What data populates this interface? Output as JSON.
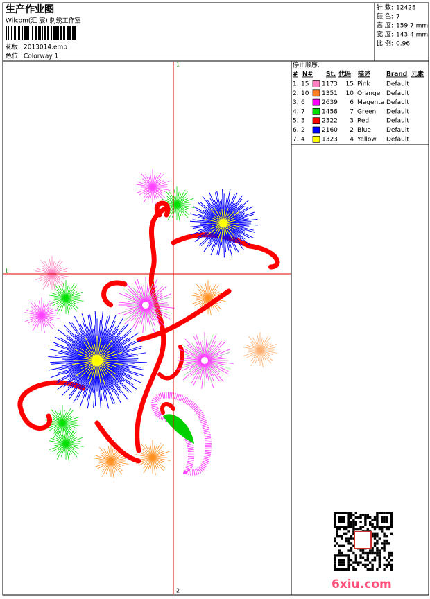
{
  "header": {
    "title": "生产作业图",
    "studio": "Wilcom(汇 宸) 刺绣工作室",
    "design_label": "花版:",
    "design_file": "2013014.emb",
    "colorway_label": "色位:",
    "colorway": "Colorway 1"
  },
  "stats": [
    {
      "label": "针 数:",
      "value": "12428"
    },
    {
      "label": "颜 色:",
      "value": "7"
    },
    {
      "label": "高 度:",
      "value": "159.7 mm"
    },
    {
      "label": "宽 度:",
      "value": "143.4 mm"
    },
    {
      "label": "比 例:",
      "value": "0.96"
    }
  ],
  "stop_sequence": {
    "title": "停止顺序:",
    "columns": [
      "#",
      "N#",
      "St.",
      "代码",
      "描述",
      "Brand",
      "元素"
    ],
    "rows": [
      {
        "no": "1.",
        "n": "15",
        "color": "#ff80c0",
        "st": "1173",
        "code": "15",
        "desc": "Pink",
        "brand": "Default"
      },
      {
        "no": "2.",
        "n": "10",
        "color": "#ff8020",
        "st": "1351",
        "code": "10",
        "desc": "Orange",
        "brand": "Default"
      },
      {
        "no": "3.",
        "n": "6",
        "color": "#ff00ff",
        "st": "2639",
        "code": "6",
        "desc": "Magenta",
        "brand": "Default"
      },
      {
        "no": "4.",
        "n": "7",
        "color": "#00e000",
        "st": "1458",
        "code": "7",
        "desc": "Green",
        "brand": "Default"
      },
      {
        "no": "5.",
        "n": "3",
        "color": "#ff0000",
        "st": "2322",
        "code": "3",
        "desc": "Red",
        "brand": "Default"
      },
      {
        "no": "6.",
        "n": "2",
        "color": "#0000ff",
        "st": "2160",
        "code": "2",
        "desc": "Blue",
        "brand": "Default"
      },
      {
        "no": "7.",
        "n": "4",
        "color": "#ffff00",
        "st": "1323",
        "code": "4",
        "desc": "Yellow",
        "brand": "Default"
      }
    ]
  },
  "crosshair": {
    "top": "1",
    "left": "1",
    "bottom": "2"
  },
  "watermark": "6xiu.com"
}
